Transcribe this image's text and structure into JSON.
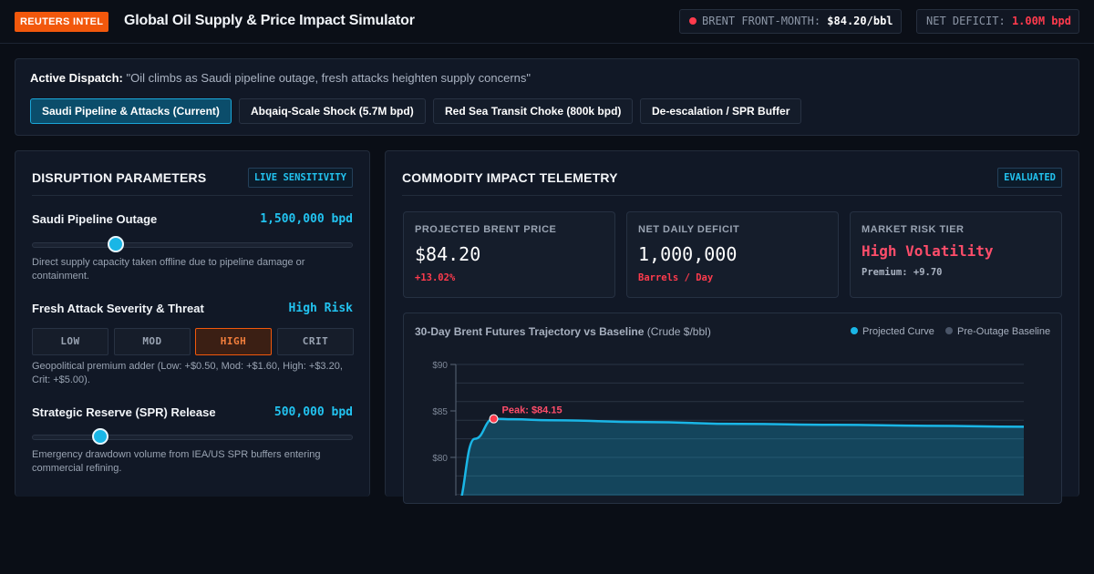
{
  "header": {
    "badge": "REUTERS INTEL",
    "title": "Global Oil Supply & Price Impact Simulator",
    "brent_label": "BRENT FRONT-MONTH:",
    "brent_value": "$84.20/bbl",
    "deficit_label": "NET DEFICIT:",
    "deficit_value": "1.00M bpd"
  },
  "dispatch": {
    "label": "Active Dispatch:",
    "quote": "\"Oil climbs as Saudi pipeline outage, fresh attacks heighten supply concerns\"",
    "scenarios": [
      {
        "label": "Saudi Pipeline & Attacks (Current)",
        "active": true
      },
      {
        "label": "Abqaiq-Scale Shock (5.7M bpd)",
        "active": false
      },
      {
        "label": "Red Sea Transit Choke (800k bpd)",
        "active": false
      },
      {
        "label": "De-escalation / SPR Buffer",
        "active": false
      }
    ]
  },
  "left_panel": {
    "title": "DISRUPTION PARAMETERS",
    "tag": "LIVE SENSITIVITY",
    "outage": {
      "label": "Saudi Pipeline Outage",
      "value": "1,500,000 bpd",
      "slider_fraction": 0.265,
      "desc": "Direct supply capacity taken offline due to pipeline damage or containment."
    },
    "severity": {
      "label": "Fresh Attack Severity & Threat",
      "value": "High Risk",
      "options": [
        "LOW",
        "MOD",
        "HIGH",
        "CRIT"
      ],
      "selected": "HIGH",
      "desc": "Geopolitical premium adder (Low: +$0.50, Mod: +$1.60, High: +$3.20, Crit: +$5.00)."
    },
    "spr": {
      "label": "Strategic Reserve (SPR) Release",
      "value": "500,000 bpd",
      "slider_fraction": 0.215,
      "desc": "Emergency drawdown volume from IEA/US SPR buffers entering commercial refining."
    }
  },
  "right_panel": {
    "title": "COMMODITY IMPACT TELEMETRY",
    "tag": "EVALUATED",
    "cards": [
      {
        "label": "PROJECTED BRENT PRICE",
        "value": "$84.20",
        "sub": "+13.02%"
      },
      {
        "label": "NET DAILY DEFICIT",
        "value": "1,000,000",
        "sub": "Barrels / Day"
      },
      {
        "label": "MARKET RISK TIER",
        "value": "High Volatility",
        "sub": "Premium: +9.70"
      }
    ],
    "chart_title": "30-Day Brent Futures Trajectory vs Baseline",
    "chart_unit": "(Crude $/bbl)",
    "legend_projected": "Projected Curve",
    "legend_baseline": "Pre-Outage Baseline",
    "peak_label": "Peak: $84.15"
  },
  "colors": {
    "accent": "#1ab6e6",
    "brand": "#f2580c",
    "alert": "#ff3b4d",
    "baseline": "#4a5568"
  },
  "chart_data": {
    "type": "area",
    "title": "30-Day Brent Futures Trajectory vs Baseline",
    "ylabel": "(Crude $/bbl)",
    "y_ticks": [
      80,
      85,
      90
    ],
    "ylim": [
      74,
      90
    ],
    "grid": true,
    "legend": "top-right",
    "series": [
      {
        "name": "Projected Curve",
        "x": [
          0,
          1,
          2,
          3,
          5,
          10,
          15,
          20,
          25,
          30
        ],
        "values": [
          74.5,
          82.0,
          84.15,
          84.1,
          84.0,
          83.8,
          83.6,
          83.5,
          83.4,
          83.3
        ]
      }
    ],
    "annotations": [
      {
        "text": "Peak: $84.15",
        "x": 2,
        "y": 84.15
      }
    ]
  }
}
